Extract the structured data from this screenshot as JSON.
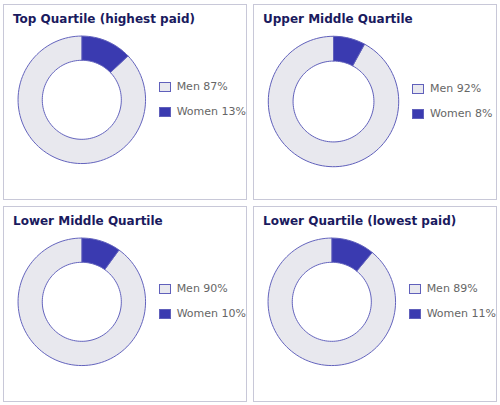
{
  "chart_data": [
    {
      "type": "pie",
      "title": "Top Quartile (highest paid)",
      "categories": [
        "Women 13%",
        "Men 87%"
      ],
      "values": [
        13,
        87
      ],
      "colors": [
        "#3a3ab0",
        "#e8e8ee"
      ],
      "legend": "right"
    },
    {
      "type": "pie",
      "title": "Upper Middle Quartile",
      "categories": [
        "Women 8%",
        "Men 92%"
      ],
      "values": [
        8,
        92
      ],
      "colors": [
        "#3a3ab0",
        "#e8e8ee"
      ],
      "legend": "right"
    },
    {
      "type": "pie",
      "title": "Lower Middle Quartile",
      "categories": [
        "Women 10%",
        "Men 90%"
      ],
      "values": [
        10,
        90
      ],
      "colors": [
        "#3a3ab0",
        "#e8e8ee"
      ],
      "legend": "right"
    },
    {
      "type": "pie",
      "title": "Lower Quartile (lowest paid)",
      "categories": [
        "Women 11%",
        "Men 89%"
      ],
      "values": [
        11,
        89
      ],
      "colors": [
        "#3a3ab0",
        "#e8e8ee"
      ],
      "legend": "right"
    }
  ]
}
